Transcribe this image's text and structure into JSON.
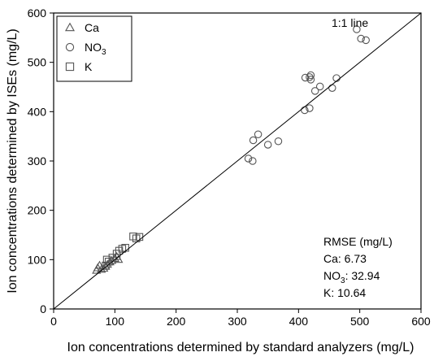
{
  "chart_data": {
    "type": "scatter",
    "xlabel": "Ion concentrations determined by standard analyzers (mg/L)",
    "ylabel": "Ion concentrations determined by ISEs (mg/L)",
    "xlim": [
      0,
      600
    ],
    "ylim": [
      0,
      600
    ],
    "xticks": [
      0,
      100,
      200,
      300,
      400,
      500,
      600
    ],
    "yticks": [
      0,
      100,
      200,
      300,
      400,
      500,
      600
    ],
    "grid": false,
    "legend_position": "top-left",
    "reference_line": {
      "label": "1:1 line",
      "x": [
        0,
        600
      ],
      "y": [
        0,
        600
      ]
    },
    "series": [
      {
        "name": "Ca",
        "marker": "triangle",
        "points": [
          [
            70,
            78
          ],
          [
            72,
            83
          ],
          [
            75,
            88
          ],
          [
            78,
            80
          ],
          [
            82,
            82
          ],
          [
            85,
            86
          ],
          [
            88,
            90
          ],
          [
            92,
            95
          ],
          [
            95,
            98
          ],
          [
            100,
            102
          ],
          [
            103,
            106
          ],
          [
            106,
            100
          ]
        ]
      },
      {
        "name": "NO",
        "name_subscript": "3",
        "marker": "circle",
        "points": [
          [
            318,
            305
          ],
          [
            325,
            300
          ],
          [
            326,
            342
          ],
          [
            334,
            354
          ],
          [
            350,
            333
          ],
          [
            367,
            340
          ],
          [
            410,
            403
          ],
          [
            411,
            469
          ],
          [
            418,
            407
          ],
          [
            418,
            470
          ],
          [
            420,
            474
          ],
          [
            420,
            465
          ],
          [
            427,
            442
          ],
          [
            435,
            451
          ],
          [
            455,
            448
          ],
          [
            462,
            468
          ],
          [
            495,
            567
          ],
          [
            502,
            548
          ],
          [
            510,
            545
          ]
        ]
      },
      {
        "name": "K",
        "marker": "square",
        "points": [
          [
            85,
            88
          ],
          [
            87,
            100
          ],
          [
            90,
            96
          ],
          [
            96,
            104
          ],
          [
            103,
            112
          ],
          [
            107,
            118
          ],
          [
            112,
            122
          ],
          [
            117,
            124
          ],
          [
            130,
            147
          ],
          [
            135,
            143
          ],
          [
            140,
            146
          ]
        ]
      }
    ],
    "rmse": {
      "heading": "RMSE (mg/L)",
      "rows": [
        {
          "label": "Ca",
          "subscript": "",
          "value": "6.73"
        },
        {
          "label": "NO",
          "subscript": "3",
          "value": "32.94"
        },
        {
          "label": "K",
          "subscript": "",
          "value": "10.64"
        }
      ]
    }
  }
}
